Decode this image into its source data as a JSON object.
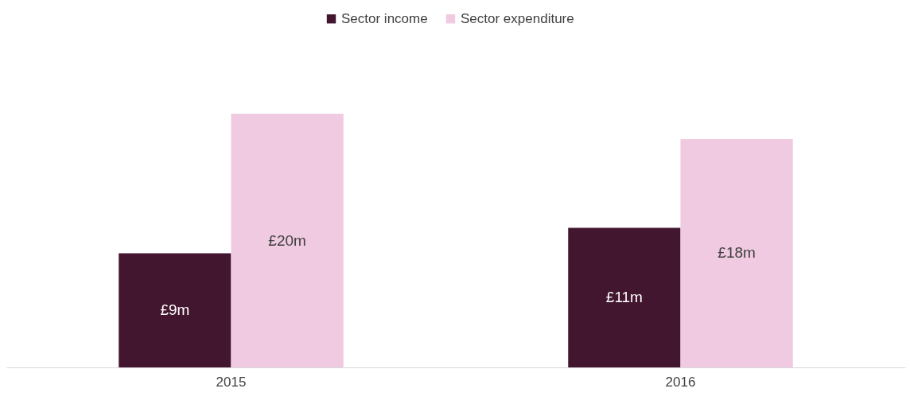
{
  "chart_data": {
    "type": "bar",
    "categories": [
      "2015",
      "2016"
    ],
    "series": [
      {
        "name": "Sector income",
        "color": "#43162f",
        "values": [
          9,
          11
        ],
        "value_labels": [
          "£9m",
          "£11m"
        ]
      },
      {
        "name": "Sector expenditure",
        "color": "#f0cae0",
        "values": [
          20,
          18
        ],
        "value_labels": [
          "£20m",
          "£18m"
        ]
      }
    ],
    "legend": "top",
    "grid": false
  }
}
